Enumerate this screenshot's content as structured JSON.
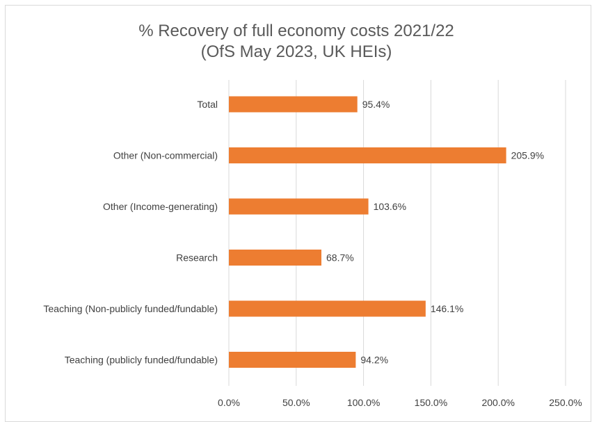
{
  "chart_data": {
    "type": "bar",
    "orientation": "horizontal",
    "title": "% Recovery of full economy costs 2021/22",
    "subtitle": "(OfS May 2023, UK HEIs)",
    "categories": [
      "Total",
      "Other (Non-commercial)",
      "Other (Income-generating)",
      "Research",
      "Teaching (Non-publicly funded/fundable)",
      "Teaching (publicly funded/fundable)"
    ],
    "values": [
      95.4,
      205.9,
      103.6,
      68.7,
      146.1,
      94.2
    ],
    "data_labels": [
      "95.4%",
      "205.9%",
      "103.6%",
      "68.7%",
      "146.1%",
      "94.2%"
    ],
    "xlim": [
      0,
      250
    ],
    "x_ticks": [
      0,
      50,
      100,
      150,
      200,
      250
    ],
    "x_tick_labels": [
      "0.0%",
      "50.0%",
      "100.0%",
      "150.0%",
      "200.0%",
      "250.0%"
    ],
    "xlabel": "",
    "ylabel": "",
    "grid": "vertical",
    "legend": "none",
    "bar_color": "#ED7D31"
  }
}
